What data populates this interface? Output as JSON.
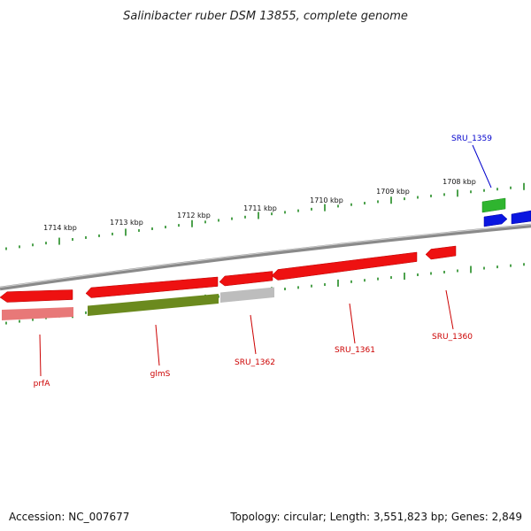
{
  "title": "Salinibacter ruber DSM 13855, complete genome",
  "accession": "Accession: NC_007677",
  "summary": "Topology: circular; Length: 3,551,823 bp; Genes: 2,849",
  "colors": {
    "red": "#ee1111",
    "pink": "#e87878",
    "olive": "#6b8a1e",
    "grey": "#bdbdbd",
    "green": "#2fb52f",
    "blue": "#0a16e0",
    "label_red": "#cc0000",
    "label_blue": "#0000cc"
  },
  "kbp_labels": [
    "1714 kbp",
    "1713 kbp",
    "1712 kbp",
    "1711 kbp",
    "1710 kbp",
    "1709 kbp",
    "1708 kbp"
  ],
  "gene_labels": [
    {
      "text": "prfA",
      "color": "red"
    },
    {
      "text": "glmS",
      "color": "red"
    },
    {
      "text": "SRU_1362",
      "color": "red"
    },
    {
      "text": "SRU_1361",
      "color": "red"
    },
    {
      "text": "SRU_1360",
      "color": "red"
    },
    {
      "text": "SRU_1359",
      "color": "blue"
    }
  ]
}
